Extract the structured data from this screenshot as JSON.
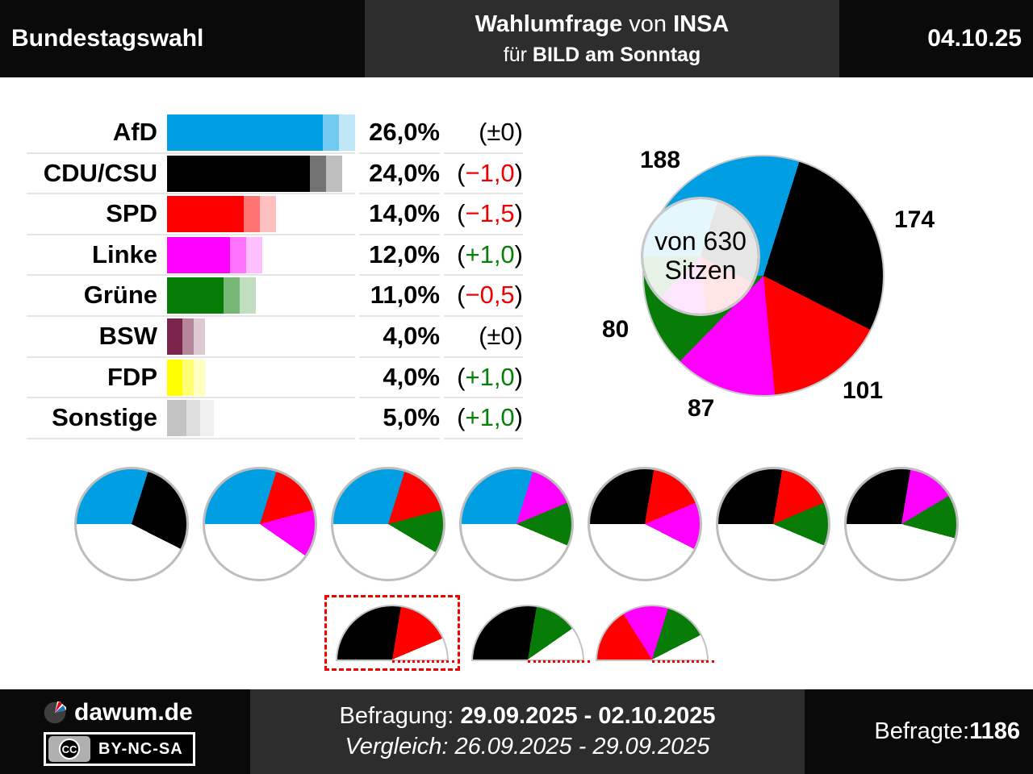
{
  "header": {
    "left_title": "Bundestagswahl",
    "center": {
      "t1_bold1": "Wahlumfrage",
      "t1_mid": " von ",
      "t1_bold2": "INSA",
      "t2_pre": "für ",
      "t2_bold": "BILD am Sonntag"
    },
    "date": "04.10.25"
  },
  "chart_data": [
    {
      "type": "bar",
      "title": "Wahlumfrage Ergebnisse",
      "categories": [
        "AfD",
        "CDU/CSU",
        "SPD",
        "Linke",
        "Grüne",
        "BSW",
        "FDP",
        "Sonstige"
      ],
      "values": [
        26.0,
        24.0,
        14.0,
        12.0,
        11.0,
        4.0,
        4.0,
        5.0
      ],
      "value_labels": [
        "26,0%",
        "24,0%",
        "14,0%",
        "12,0%",
        "11,0%",
        "4,0%",
        "4,0%",
        "5,0%"
      ],
      "changes": [
        {
          "label": "±0",
          "dir": "zero"
        },
        {
          "label": "−1,0",
          "dir": "neg"
        },
        {
          "label": "−1,5",
          "dir": "neg"
        },
        {
          "label": "+1,0",
          "dir": "pos"
        },
        {
          "label": "−0,5",
          "dir": "neg"
        },
        {
          "label": "±0",
          "dir": "zero"
        },
        {
          "label": "+1,0",
          "dir": "pos"
        },
        {
          "label": "+1,0",
          "dir": "pos"
        }
      ],
      "colors": [
        "#009FE3",
        "#000000",
        "#FF0000",
        "#FF00FF",
        "#077D07",
        "#7B2349",
        "#FFFF00",
        "#C3C3C3"
      ],
      "xlabel": "",
      "ylabel": "",
      "xlim": [
        0,
        29
      ]
    },
    {
      "type": "donut",
      "title": "Sitzverteilung",
      "center_label": [
        "von 630",
        "Sitzen"
      ],
      "total": 630,
      "segments": [
        {
          "party": "AfD",
          "seats": 188,
          "color": "#009FE3"
        },
        {
          "party": "CDU/CSU",
          "seats": 174,
          "color": "#000000"
        },
        {
          "party": "SPD",
          "seats": 101,
          "color": "#FF0000"
        },
        {
          "party": "Linke",
          "seats": 87,
          "color": "#FF00FF"
        },
        {
          "party": "Grüne",
          "seats": 80,
          "color": "#077D07"
        }
      ]
    },
    {
      "type": "coalition_pies",
      "total": 630,
      "pies": [
        {
          "parties": [
            "AfD",
            "CDU/CSU"
          ],
          "seats": [
            188,
            174
          ],
          "colors": [
            "#009FE3",
            "#000000"
          ]
        },
        {
          "parties": [
            "AfD",
            "SPD",
            "Linke"
          ],
          "seats": [
            188,
            101,
            87
          ],
          "colors": [
            "#009FE3",
            "#FF0000",
            "#FF00FF"
          ]
        },
        {
          "parties": [
            "AfD",
            "SPD",
            "Grüne"
          ],
          "seats": [
            188,
            101,
            80
          ],
          "colors": [
            "#009FE3",
            "#FF0000",
            "#077D07"
          ]
        },
        {
          "parties": [
            "AfD",
            "Linke",
            "Grüne"
          ],
          "seats": [
            188,
            87,
            80
          ],
          "colors": [
            "#009FE3",
            "#FF00FF",
            "#077D07"
          ]
        },
        {
          "parties": [
            "CDU/CSU",
            "SPD",
            "Linke"
          ],
          "seats": [
            174,
            101,
            87
          ],
          "colors": [
            "#000000",
            "#FF0000",
            "#FF00FF"
          ]
        },
        {
          "parties": [
            "CDU/CSU",
            "SPD",
            "Grüne"
          ],
          "seats": [
            174,
            101,
            80
          ],
          "colors": [
            "#000000",
            "#FF0000",
            "#077D07"
          ]
        },
        {
          "parties": [
            "CDU/CSU",
            "Linke",
            "Grüne"
          ],
          "seats": [
            174,
            87,
            80
          ],
          "colors": [
            "#000000",
            "#FF00FF",
            "#077D07"
          ]
        }
      ]
    },
    {
      "type": "majority_semicircles",
      "majority": 315,
      "semis": [
        {
          "parties": [
            "CDU/CSU",
            "SPD"
          ],
          "seats": [
            174,
            101
          ],
          "colors": [
            "#000000",
            "#FF0000"
          ],
          "highlighted": true
        },
        {
          "parties": [
            "CDU/CSU",
            "Grüne"
          ],
          "seats": [
            174,
            80
          ],
          "colors": [
            "#000000",
            "#077D07"
          ],
          "highlighted": false
        },
        {
          "parties": [
            "SPD",
            "Linke",
            "Grüne"
          ],
          "seats": [
            101,
            87,
            80
          ],
          "colors": [
            "#FF0000",
            "#FF00FF",
            "#077D07"
          ],
          "highlighted": false
        }
      ]
    }
  ],
  "footer": {
    "brand": "dawum.de",
    "license_cc": "CC",
    "license": "BY-NC-SA",
    "survey_label": "Befragung: ",
    "survey_dates": "29.09.2025 - 02.10.2025",
    "compare_label": "Vergleich: ",
    "compare_dates": "26.09.2025 - 29.09.2025",
    "respondents_label": "Befragte: ",
    "respondents_value": "1186"
  },
  "accent_colors": {
    "highlight_red": "#f20000",
    "separator_gray": "#e5e5e5",
    "ring_gray": "#c8c8c8"
  }
}
